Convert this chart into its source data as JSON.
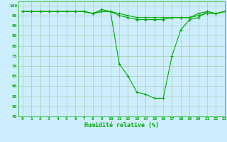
{
  "title": "",
  "xlabel": "Humidité relative (%)",
  "ylabel": "",
  "background_color": "#cceeff",
  "grid_color": "#aaccaa",
  "line_color": "#00aa00",
  "marker_color": "#00aa00",
  "xlim": [
    -0.5,
    23
  ],
  "ylim": [
    45,
    102
  ],
  "yticks": [
    45,
    50,
    55,
    60,
    65,
    70,
    75,
    80,
    85,
    90,
    95,
    100
  ],
  "xticks": [
    0,
    1,
    2,
    3,
    4,
    5,
    6,
    7,
    8,
    9,
    10,
    11,
    12,
    13,
    14,
    15,
    16,
    17,
    18,
    19,
    20,
    21,
    22,
    23
  ],
  "series1": {
    "x": [
      0,
      1,
      2,
      3,
      4,
      5,
      6,
      7,
      8,
      9,
      10,
      11,
      12,
      13,
      14,
      15,
      16,
      17,
      18,
      19,
      20,
      21,
      22,
      23
    ],
    "y": [
      97,
      97,
      97,
      97,
      97,
      97,
      97,
      97,
      96,
      97,
      97,
      96,
      95,
      94,
      94,
      94,
      94,
      94,
      94,
      94,
      96,
      97,
      96,
      97
    ]
  },
  "series2": {
    "x": [
      0,
      1,
      2,
      3,
      4,
      5,
      6,
      7,
      8,
      9,
      10,
      11,
      12,
      13,
      14,
      15,
      16,
      17,
      18,
      19,
      20,
      21,
      22,
      23
    ],
    "y": [
      97,
      97,
      97,
      97,
      97,
      97,
      97,
      97,
      96,
      97,
      97,
      95,
      94,
      93,
      93,
      93,
      93,
      94,
      94,
      94,
      95,
      96,
      96,
      97
    ]
  },
  "series3": {
    "x": [
      0,
      1,
      2,
      3,
      4,
      5,
      6,
      7,
      8,
      9,
      10,
      11,
      12,
      13,
      14,
      15,
      16,
      17,
      18,
      19,
      20,
      21,
      22,
      23
    ],
    "y": [
      97,
      97,
      97,
      97,
      97,
      97,
      97,
      97,
      96,
      98,
      97,
      71,
      65,
      57,
      56,
      54,
      54,
      75,
      88,
      93,
      94,
      97,
      96,
      97
    ]
  }
}
